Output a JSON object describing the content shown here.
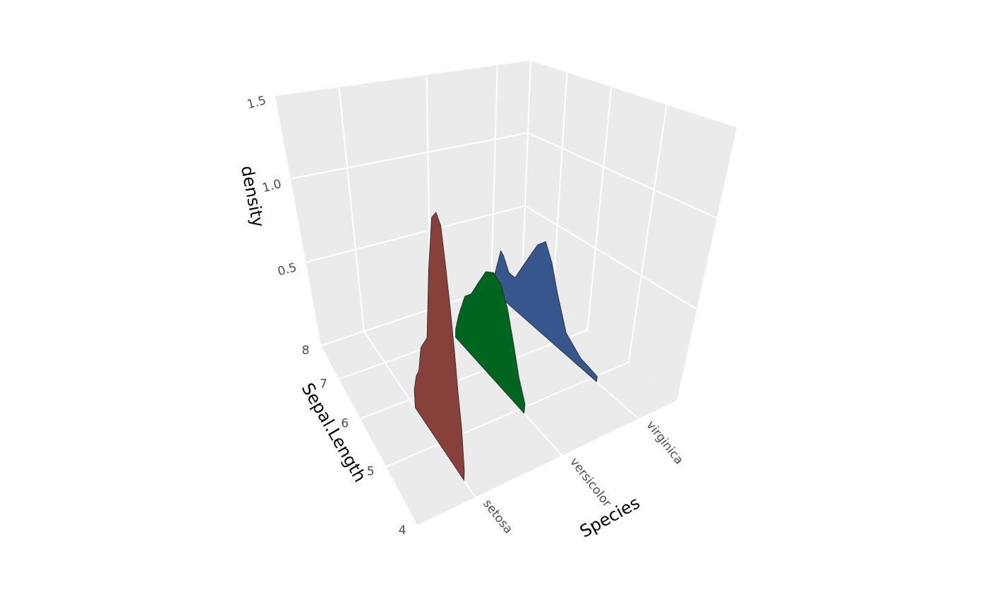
{
  "chart_data": {
    "type": "ridgeline3d",
    "category_label": "Species",
    "x_label": "Sepal.Length",
    "y_label": "density",
    "categories": [
      "setosa",
      "versicolor",
      "virginica"
    ],
    "xlim": [
      4,
      8
    ],
    "xticks": [
      4,
      5,
      6,
      7,
      8
    ],
    "ylim": [
      0,
      1.5
    ],
    "yticks": [
      0.5,
      {
        "value": 1,
        "label": "1.0"
      },
      1.5
    ],
    "grid": true,
    "series": [
      {
        "color": "#87413a",
        "x": [
          4.3,
          4.4,
          4.5,
          4.6,
          4.7,
          4.8,
          4.9,
          5.0,
          5.1,
          5.2,
          5.3,
          5.4,
          5.5,
          5.6,
          5.7,
          5.8
        ],
        "values": [
          0.05,
          0.25,
          0.4,
          0.6,
          0.8,
          1.0,
          1.2,
          1.25,
          1.2,
          0.9,
          0.5,
          0.45,
          0.4,
          0.25,
          0.2,
          0.1
        ]
      },
      {
        "color": "#00661f",
        "x": [
          4.9,
          5.1,
          5.3,
          5.5,
          5.7,
          5.9,
          6.1,
          6.3,
          6.5,
          6.7,
          6.9,
          7.0
        ],
        "values": [
          0.05,
          0.15,
          0.3,
          0.45,
          0.55,
          0.58,
          0.55,
          0.45,
          0.35,
          0.3,
          0.15,
          0.05
        ]
      },
      {
        "color": "#36568c",
        "x": [
          4.9,
          5.3,
          5.7,
          6.0,
          6.2,
          6.4,
          6.6,
          6.8,
          7.0,
          7.2,
          7.4,
          7.6,
          7.7,
          7.9
        ],
        "values": [
          0.03,
          0.05,
          0.12,
          0.3,
          0.45,
          0.55,
          0.5,
          0.4,
          0.3,
          0.2,
          0.2,
          0.28,
          0.3,
          0.1
        ]
      }
    ]
  }
}
